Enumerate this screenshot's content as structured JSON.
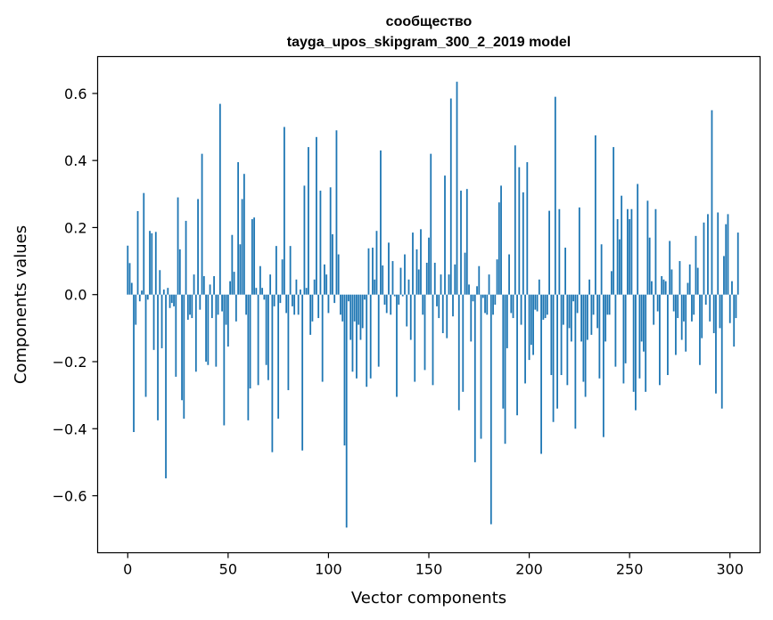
{
  "chart_data": {
    "type": "bar",
    "title": "сообщество",
    "subtitle": "tayga_upos_skipgram_300_2_2019 model",
    "xlabel": "Vector components",
    "ylabel": "Components values",
    "xlim": [
      -15,
      315
    ],
    "ylim": [
      -0.77,
      0.71
    ],
    "xticks": [
      0,
      50,
      100,
      150,
      200,
      250,
      300
    ],
    "xtick_labels": [
      "0",
      "50",
      "100",
      "150",
      "200",
      "250",
      "300"
    ],
    "yticks": [
      -0.6,
      -0.4,
      -0.2,
      0.0,
      0.2,
      0.4,
      0.6
    ],
    "ytick_labels": [
      "−0.6",
      "−0.4",
      "−0.2",
      "0.0",
      "0.2",
      "0.4",
      "0.6"
    ],
    "grid": false,
    "bar_color": "#1f77b4",
    "series": [
      {
        "values": [
          0.146,
          0.094,
          0.035,
          -0.41,
          -0.09,
          0.249,
          -0.02,
          0.012,
          0.303,
          -0.305,
          -0.015,
          0.19,
          0.183,
          -0.165,
          0.187,
          -0.375,
          0.073,
          -0.16,
          0.015,
          -0.548,
          0.02,
          -0.04,
          -0.025,
          -0.035,
          -0.245,
          0.29,
          0.135,
          -0.315,
          -0.37,
          0.22,
          -0.075,
          -0.06,
          -0.07,
          0.06,
          -0.23,
          0.285,
          -0.045,
          0.42,
          0.055,
          -0.2,
          -0.21,
          0.03,
          -0.07,
          0.055,
          -0.215,
          -0.06,
          0.569,
          -0.05,
          -0.39,
          -0.09,
          -0.155,
          0.04,
          0.178,
          0.068,
          -0.08,
          0.395,
          0.15,
          0.285,
          0.36,
          -0.06,
          -0.375,
          -0.28,
          0.225,
          0.23,
          0.02,
          -0.27,
          0.085,
          0.02,
          -0.015,
          -0.21,
          -0.255,
          0.06,
          -0.47,
          -0.035,
          0.145,
          -0.37,
          -0.025,
          0.105,
          0.5,
          -0.055,
          -0.285,
          0.145,
          -0.035,
          -0.06,
          0.045,
          -0.06,
          0.015,
          -0.465,
          0.325,
          0.02,
          0.44,
          -0.12,
          -0.08,
          0.045,
          0.47,
          -0.07,
          0.31,
          -0.26,
          0.09,
          0.06,
          -0.055,
          0.32,
          0.18,
          -0.025,
          0.49,
          0.12,
          -0.06,
          -0.08,
          -0.45,
          -0.695,
          -0.02,
          -0.135,
          -0.23,
          -0.08,
          -0.25,
          -0.09,
          -0.135,
          -0.1,
          -0.015,
          -0.275,
          0.138,
          -0.25,
          0.14,
          0.045,
          0.19,
          -0.215,
          0.43,
          0.087,
          -0.03,
          -0.055,
          0.155,
          -0.06,
          0.1,
          -0.005,
          -0.305,
          -0.03,
          0.08,
          -0.005,
          0.12,
          -0.095,
          0.045,
          -0.135,
          0.185,
          -0.26,
          0.135,
          0.075,
          0.195,
          -0.06,
          -0.225,
          0.095,
          0.17,
          0.42,
          -0.27,
          0.095,
          -0.035,
          -0.07,
          0.06,
          -0.115,
          0.355,
          -0.13,
          0.06,
          0.585,
          -0.065,
          0.09,
          0.635,
          -0.345,
          0.31,
          -0.29,
          0.125,
          0.315,
          0.03,
          -0.14,
          -0.02,
          -0.5,
          0.025,
          0.085,
          -0.43,
          -0.01,
          -0.055,
          -0.06,
          0.06,
          -0.685,
          -0.06,
          -0.03,
          0.105,
          0.275,
          0.325,
          -0.34,
          -0.445,
          -0.16,
          0.12,
          -0.055,
          -0.07,
          0.445,
          -0.36,
          0.38,
          -0.09,
          0.305,
          -0.265,
          0.395,
          -0.195,
          -0.15,
          -0.18,
          -0.045,
          -0.05,
          0.045,
          -0.475,
          -0.075,
          -0.07,
          -0.06,
          0.25,
          -0.24,
          -0.38,
          0.59,
          -0.34,
          0.255,
          -0.24,
          -0.09,
          0.14,
          -0.27,
          -0.1,
          -0.14,
          -0.02,
          -0.4,
          -0.055,
          0.26,
          -0.14,
          -0.26,
          -0.305,
          -0.135,
          0.045,
          -0.12,
          -0.06,
          0.475,
          -0.1,
          -0.25,
          0.15,
          -0.425,
          -0.14,
          -0.06,
          -0.06,
          0.07,
          0.44,
          -0.215,
          0.225,
          0.165,
          0.295,
          -0.265,
          -0.205,
          0.255,
          0.225,
          0.255,
          -0.29,
          -0.345,
          0.33,
          -0.25,
          -0.14,
          -0.17,
          -0.29,
          0.28,
          0.17,
          0.04,
          -0.09,
          0.255,
          -0.05,
          -0.27,
          0.055,
          0.045,
          0.04,
          -0.24,
          0.16,
          0.075,
          -0.05,
          -0.18,
          -0.07,
          0.1,
          -0.135,
          -0.08,
          -0.17,
          0.035,
          0.09,
          -0.08,
          -0.06,
          0.175,
          0.08,
          -0.21,
          -0.13,
          0.215,
          -0.03,
          0.24,
          -0.08,
          0.55,
          -0.115,
          -0.295,
          0.245,
          -0.1,
          -0.34,
          0.115,
          0.21,
          0.24,
          -0.085,
          0.04,
          -0.155,
          -0.07,
          0.185
        ]
      }
    ]
  }
}
